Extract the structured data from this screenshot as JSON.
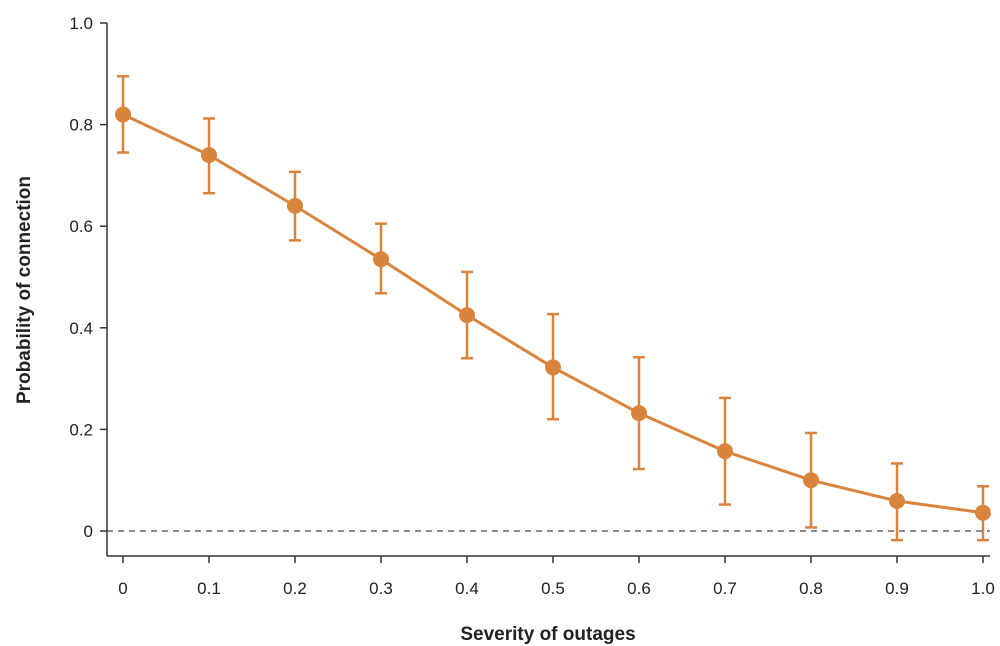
{
  "chart_data": {
    "type": "line",
    "xlabel": "Severity of outages",
    "ylabel": "Probability of connection",
    "xlim": [
      0,
      1.0
    ],
    "ylim": [
      0,
      1.0
    ],
    "x_ticks": [
      "0",
      "0.1",
      "0.2",
      "0.3",
      "0.4",
      "0.5",
      "0.6",
      "0.7",
      "0.8",
      "0.9",
      "1.0"
    ],
    "y_ticks": [
      "0",
      "0.2",
      "0.4",
      "0.6",
      "0.8",
      "1.0"
    ],
    "reference_line": {
      "y": 0,
      "style": "dashed"
    },
    "grid": false,
    "series": [
      {
        "x": [
          0,
          0.1,
          0.2,
          0.3,
          0.4,
          0.5,
          0.6,
          0.7,
          0.8,
          0.9,
          1.0
        ],
        "y": [
          0.82,
          0.74,
          0.64,
          0.535,
          0.425,
          0.322,
          0.232,
          0.157,
          0.1,
          0.059,
          0.036
        ],
        "lower": [
          0.745,
          0.665,
          0.572,
          0.468,
          0.34,
          0.22,
          0.122,
          0.052,
          0.007,
          -0.018,
          -0.018
        ],
        "upper": [
          0.895,
          0.812,
          0.707,
          0.605,
          0.51,
          0.427,
          0.342,
          0.262,
          0.193,
          0.133,
          0.088
        ],
        "color": "#d8843c"
      }
    ],
    "colors": {
      "series": "#d8843c",
      "axis": "#333333",
      "reference": "#444444"
    }
  }
}
